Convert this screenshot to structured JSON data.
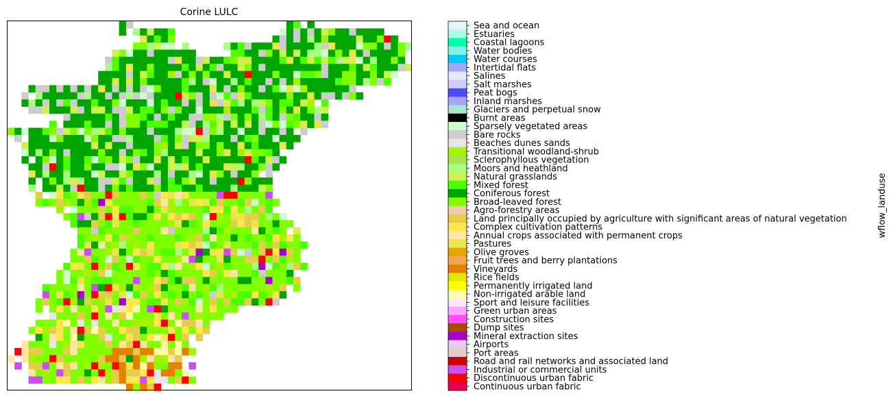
{
  "chart_data": {
    "type": "heatmap",
    "title": "Corine LULC",
    "colorbar_label": "wflow_landuse",
    "legend": [
      {
        "label": "Sea and ocean",
        "color": "#e6f2ff"
      },
      {
        "label": "Estuaries",
        "color": "#a6ffe6"
      },
      {
        "label": "Coastal lagoons",
        "color": "#00ffa6"
      },
      {
        "label": "Water bodies",
        "color": "#80f2e6"
      },
      {
        "label": "Water courses",
        "color": "#00ccf2"
      },
      {
        "label": "Intertidal flats",
        "color": "#a6a6ff"
      },
      {
        "label": "Salines",
        "color": "#e6e6ff"
      },
      {
        "label": "Salt marshes",
        "color": "#ccccff"
      },
      {
        "label": "Peat bogs",
        "color": "#4d4dff"
      },
      {
        "label": "Inland marshes",
        "color": "#a6a6ff"
      },
      {
        "label": "Glaciers and perpetual snow",
        "color": "#a6e6cc"
      },
      {
        "label": "Burnt areas",
        "color": "#000000"
      },
      {
        "label": "Sparsely vegetated areas",
        "color": "#ccffcc"
      },
      {
        "label": "Bare rocks",
        "color": "#cccccc"
      },
      {
        "label": "Beaches dunes sands",
        "color": "#e6e6e6"
      },
      {
        "label": "Transitional woodland-shrub",
        "color": "#a6f200"
      },
      {
        "label": "Sclerophyllous vegetation",
        "color": "#a6e64d"
      },
      {
        "label": "Moors and heathland",
        "color": "#a6ff80"
      },
      {
        "label": "Natural grasslands",
        "color": "#ccf24d"
      },
      {
        "label": "Mixed forest",
        "color": "#4dff00"
      },
      {
        "label": "Coniferous forest",
        "color": "#00a600"
      },
      {
        "label": "Broad-leaved forest",
        "color": "#80ff00"
      },
      {
        "label": "Agro-forestry areas",
        "color": "#f2cca6"
      },
      {
        "label": "Land principally occupied by agriculture with significant areas of natural vegetation",
        "color": "#e6cc4d"
      },
      {
        "label": "Complex cultivation patterns",
        "color": "#ffe64d"
      },
      {
        "label": "Annual crops associated with permanent crops",
        "color": "#ffe6a6"
      },
      {
        "label": "Pastures",
        "color": "#e6e64d"
      },
      {
        "label": "Olive groves",
        "color": "#e6a600"
      },
      {
        "label": "Fruit trees and berry plantations",
        "color": "#f2a64d"
      },
      {
        "label": "Vineyards",
        "color": "#e68000"
      },
      {
        "label": "Rice fields",
        "color": "#e6e600"
      },
      {
        "label": "Permanently irrigated land",
        "color": "#ffff00"
      },
      {
        "label": "Non-irrigated arable land",
        "color": "#ffffa8"
      },
      {
        "label": "Sport and leisure facilities",
        "color": "#ffe6ff"
      },
      {
        "label": "Green urban areas",
        "color": "#ffa6ff"
      },
      {
        "label": "Construction sites",
        "color": "#ff4dff"
      },
      {
        "label": "Dump sites",
        "color": "#a64d00"
      },
      {
        "label": "Mineral extraction sites",
        "color": "#a600cc"
      },
      {
        "label": "Airports",
        "color": "#e6cce6"
      },
      {
        "label": "Port areas",
        "color": "#e6cccc"
      },
      {
        "label": "Road and rail networks and associated land",
        "color": "#cc0000"
      },
      {
        "label": "Industrial or commercial units",
        "color": "#cc4df2"
      },
      {
        "label": "Discontinuous urban fabric",
        "color": "#ff0000"
      },
      {
        "label": "Continuous urban fabric",
        "color": "#e6004d"
      }
    ]
  }
}
